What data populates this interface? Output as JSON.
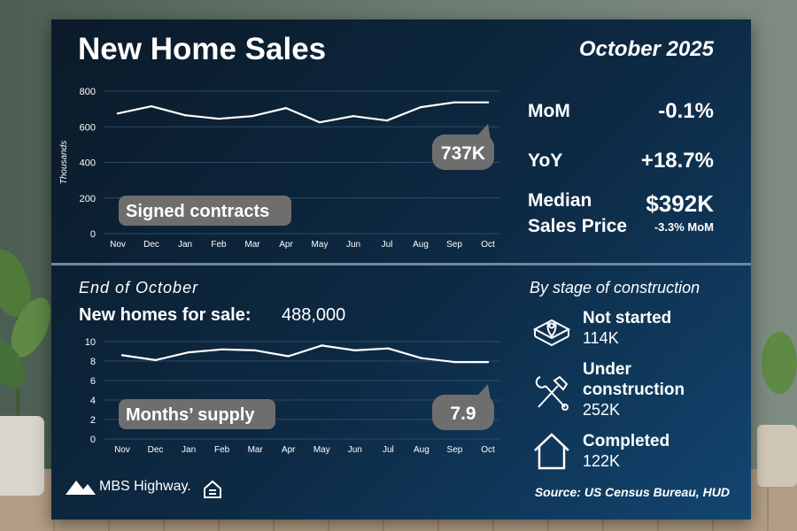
{
  "header": {
    "title": "New Home Sales",
    "period": "October 2025"
  },
  "stats": {
    "mom_label": "MoM",
    "mom_value": "-0.1%",
    "yoy_label": "YoY",
    "yoy_value": "+18.7%",
    "median_label_1": "Median",
    "median_label_2": "Sales Price",
    "median_value": "$392K",
    "median_change": "-3.3% MoM"
  },
  "inventory": {
    "subtitle": "End of October",
    "label": "New homes for sale:",
    "value": "488,000"
  },
  "stages": {
    "subtitle": "By stage of construction",
    "items": [
      {
        "name": "Not started",
        "value": "114K",
        "icon": "house-location-icon"
      },
      {
        "name": "Under construction",
        "name_1": "Under",
        "name_2": "construction",
        "value": "252K",
        "icon": "tools-icon"
      },
      {
        "name": "Completed",
        "value": "122K",
        "icon": "house-outline-icon"
      }
    ]
  },
  "footer": {
    "logo": "MBS Highway.",
    "source": "Source: US Census Bureau, HUD"
  },
  "colors": {
    "card": "#0d2a44",
    "line": "#ffffff",
    "pill": "#6e6e6e",
    "divider": "#6f88a0"
  },
  "chart_data": [
    {
      "type": "line",
      "label": "Signed contracts",
      "ylabel": "Thousands",
      "categories": [
        "Nov",
        "Dec",
        "Jan",
        "Feb",
        "Mar",
        "Apr",
        "May",
        "Jun",
        "Jul",
        "Aug",
        "Sep",
        "Oct"
      ],
      "values": [
        675,
        715,
        665,
        645,
        660,
        705,
        625,
        660,
        635,
        710,
        737,
        737
      ],
      "ylim": [
        0,
        800
      ],
      "yticks": [
        0,
        200,
        400,
        600,
        800
      ],
      "callout": "737K",
      "grid": true
    },
    {
      "type": "line",
      "label": "Months’ supply",
      "categories": [
        "Nov",
        "Dec",
        "Jan",
        "Feb",
        "Mar",
        "Apr",
        "May",
        "Jun",
        "Jul",
        "Aug",
        "Sep",
        "Oct"
      ],
      "values": [
        8.6,
        8.1,
        8.9,
        9.2,
        9.1,
        8.5,
        9.6,
        9.1,
        9.3,
        8.3,
        7.9,
        7.9
      ],
      "ylim": [
        0,
        10
      ],
      "yticks": [
        0,
        2,
        4,
        6,
        8,
        10
      ],
      "callout": "7.9",
      "grid": true
    }
  ]
}
